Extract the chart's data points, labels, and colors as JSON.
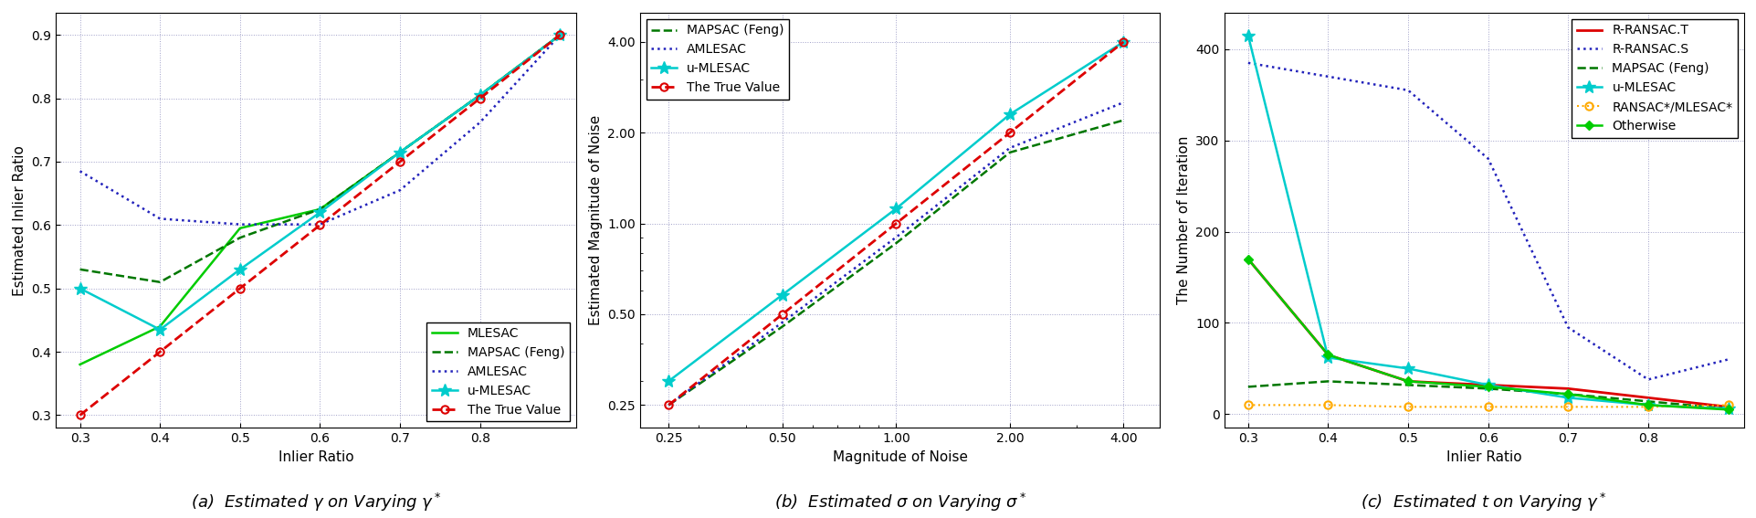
{
  "plot1": {
    "xlabel": "Inlier Ratio",
    "ylabel": "Estimated Inlier Ratio",
    "xlim": [
      0.27,
      0.92
    ],
    "ylim": [
      0.28,
      0.935
    ],
    "xticks": [
      0.3,
      0.4,
      0.5,
      0.6,
      0.7,
      0.8
    ],
    "yticks": [
      0.3,
      0.4,
      0.5,
      0.6,
      0.7,
      0.8,
      0.9
    ],
    "series": {
      "MLESAC": {
        "x": [
          0.3,
          0.4,
          0.5,
          0.6,
          0.7,
          0.8,
          0.9
        ],
        "y": [
          0.38,
          0.44,
          0.595,
          0.625,
          0.715,
          0.805,
          0.9
        ],
        "color": "#00CC00",
        "linestyle": "-",
        "marker": null,
        "linewidth": 1.8
      },
      "MAPSAC (Feng)": {
        "x": [
          0.3,
          0.4,
          0.5,
          0.6,
          0.7,
          0.8,
          0.9
        ],
        "y": [
          0.53,
          0.51,
          0.58,
          0.625,
          0.715,
          0.805,
          0.9
        ],
        "color": "#007700",
        "linestyle": "--",
        "marker": null,
        "linewidth": 1.8
      },
      "AMLESAC": {
        "x": [
          0.3,
          0.4,
          0.5,
          0.6,
          0.7,
          0.8,
          0.9
        ],
        "y": [
          0.685,
          0.61,
          0.601,
          0.601,
          0.655,
          0.762,
          0.9
        ],
        "color": "#2222BB",
        "linestyle": ":",
        "marker": null,
        "linewidth": 1.8
      },
      "u-MLESAC": {
        "x": [
          0.3,
          0.4,
          0.5,
          0.6,
          0.7,
          0.8,
          0.9
        ],
        "y": [
          0.5,
          0.435,
          0.53,
          0.62,
          0.715,
          0.805,
          0.9
        ],
        "color": "#00CCCC",
        "linestyle": "-",
        "marker": "*",
        "linewidth": 1.8
      },
      "The True Value": {
        "x": [
          0.3,
          0.4,
          0.5,
          0.6,
          0.7,
          0.8,
          0.9
        ],
        "y": [
          0.3,
          0.4,
          0.5,
          0.6,
          0.7,
          0.8,
          0.9
        ],
        "color": "#DD0000",
        "linestyle": "--",
        "marker": "o",
        "linewidth": 2.0
      }
    },
    "legend_loc": "lower right"
  },
  "plot2": {
    "xlabel": "Magnitude of Noise",
    "ylabel": "Estimated Magnitude of Noise",
    "xticks": [
      0.25,
      0.5,
      1,
      2,
      4
    ],
    "yticks": [
      0.25,
      0.5,
      1,
      2,
      4
    ],
    "series": {
      "MAPSAC (Feng)": {
        "x": [
          0.25,
          0.5,
          1.0,
          2.0,
          4.0
        ],
        "y": [
          0.25,
          0.455,
          0.86,
          1.72,
          2.2
        ],
        "color": "#007700",
        "linestyle": "--",
        "marker": null,
        "linewidth": 1.8
      },
      "AMLESAC": {
        "x": [
          0.25,
          0.5,
          1.0,
          2.0,
          4.0
        ],
        "y": [
          0.25,
          0.47,
          0.9,
          1.78,
          2.52
        ],
        "color": "#2222BB",
        "linestyle": ":",
        "marker": null,
        "linewidth": 1.8
      },
      "u-MLESAC": {
        "x": [
          0.25,
          0.5,
          1.0,
          2.0,
          4.0
        ],
        "y": [
          0.3,
          0.58,
          1.12,
          2.3,
          4.0
        ],
        "color": "#00CCCC",
        "linestyle": "-",
        "marker": "*",
        "linewidth": 1.8
      },
      "The True Value": {
        "x": [
          0.25,
          0.5,
          1.0,
          2.0,
          4.0
        ],
        "y": [
          0.25,
          0.5,
          1.0,
          2.0,
          4.0
        ],
        "color": "#DD0000",
        "linestyle": "--",
        "marker": "o",
        "linewidth": 2.0
      }
    },
    "legend_loc": "upper left"
  },
  "plot3": {
    "xlabel": "Inlier Ratio",
    "ylabel": "The Number of Iteration",
    "xlim": [
      0.27,
      0.92
    ],
    "ylim": [
      -15,
      440
    ],
    "xticks": [
      0.3,
      0.4,
      0.5,
      0.6,
      0.7,
      0.8
    ],
    "yticks": [
      0,
      100,
      200,
      300,
      400
    ],
    "series": {
      "R-RANSAC.T": {
        "x": [
          0.3,
          0.4,
          0.5,
          0.6,
          0.7,
          0.8,
          0.9
        ],
        "y": [
          170,
          65,
          36,
          32,
          28,
          18,
          8
        ],
        "color": "#DD0000",
        "linestyle": "-",
        "marker": null,
        "linewidth": 2.0
      },
      "R-RANSAC.S": {
        "x": [
          0.3,
          0.4,
          0.5,
          0.6,
          0.7,
          0.8,
          0.9
        ],
        "y": [
          385,
          370,
          355,
          280,
          95,
          38,
          60
        ],
        "color": "#2222BB",
        "linestyle": ":",
        "marker": null,
        "linewidth": 1.8
      },
      "MAPSAC (Feng)": {
        "x": [
          0.3,
          0.4,
          0.5,
          0.6,
          0.7,
          0.8,
          0.9
        ],
        "y": [
          30,
          36,
          32,
          28,
          22,
          14,
          6
        ],
        "color": "#007700",
        "linestyle": "--",
        "marker": null,
        "linewidth": 1.8
      },
      "u-MLESAC": {
        "x": [
          0.3,
          0.4,
          0.5,
          0.6,
          0.7,
          0.8,
          0.9
        ],
        "y": [
          415,
          62,
          50,
          32,
          18,
          10,
          6
        ],
        "color": "#00CCCC",
        "linestyle": "-",
        "marker": "*",
        "linewidth": 1.8
      },
      "RANSAC*/MLESAC*": {
        "x": [
          0.3,
          0.4,
          0.5,
          0.6,
          0.7,
          0.8,
          0.9
        ],
        "y": [
          10,
          10,
          8,
          8,
          8,
          8,
          10
        ],
        "color": "#FFAA00",
        "linestyle": ":",
        "marker": "o",
        "linewidth": 1.5
      },
      "Otherwise": {
        "x": [
          0.3,
          0.4,
          0.5,
          0.6,
          0.7,
          0.8,
          0.9
        ],
        "y": [
          170,
          65,
          36,
          30,
          22,
          10,
          5
        ],
        "color": "#00CC00",
        "linestyle": "-",
        "marker": "D",
        "linewidth": 1.8
      }
    },
    "legend_loc": "upper right"
  },
  "caption1": "(a)  Estimated $\\gamma$ on Varying $\\gamma^*$",
  "caption2": "(b)  Estimated $\\sigma$ on Varying $\\sigma^*$",
  "caption3": "(c)  Estimated $t$ on Varying $\\gamma^*$",
  "background_color": "#ffffff",
  "grid_color": "#8888BB",
  "tick_fontsize": 10,
  "label_fontsize": 11,
  "legend_fontsize": 10,
  "caption_fontsize": 13
}
